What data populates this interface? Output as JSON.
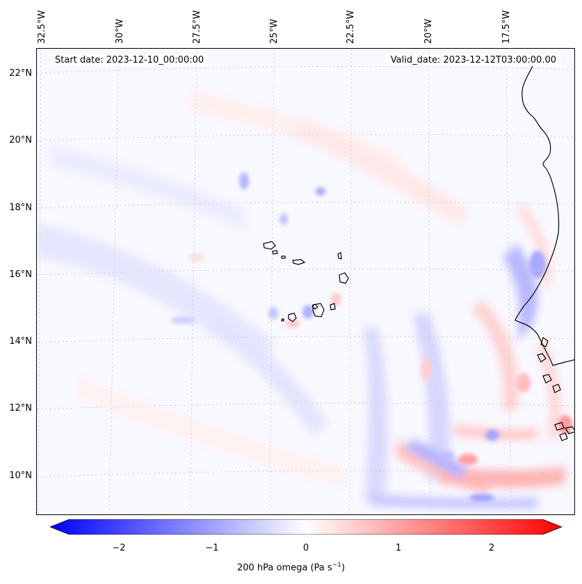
{
  "map": {
    "start_date": "Start date: 2023-12-10_00:00:00",
    "valid_date": "Valid_date: 2023-12-12T03:00:00.00",
    "lat_labels": [
      "22°N",
      "20°N",
      "18°N",
      "16°N",
      "14°N",
      "12°N",
      "10°N"
    ],
    "lon_labels": [
      "32.5°W",
      "30°W",
      "27.5°W",
      "25°W",
      "22.5°W",
      "20°W",
      "17.5°W"
    ],
    "variable": "200 hPa omega",
    "units": "Pa s",
    "units_exponent": "−1",
    "features": [
      "cape-verde-islands",
      "west-african-coastline"
    ]
  },
  "colorbar": {
    "ticks": [
      "−2",
      "−1",
      "0",
      "1",
      "2"
    ],
    "min": -2.7,
    "max": 2.7,
    "low_color": "#0000ff",
    "mid_color": "#ffffff",
    "high_color": "#ff0000"
  }
}
